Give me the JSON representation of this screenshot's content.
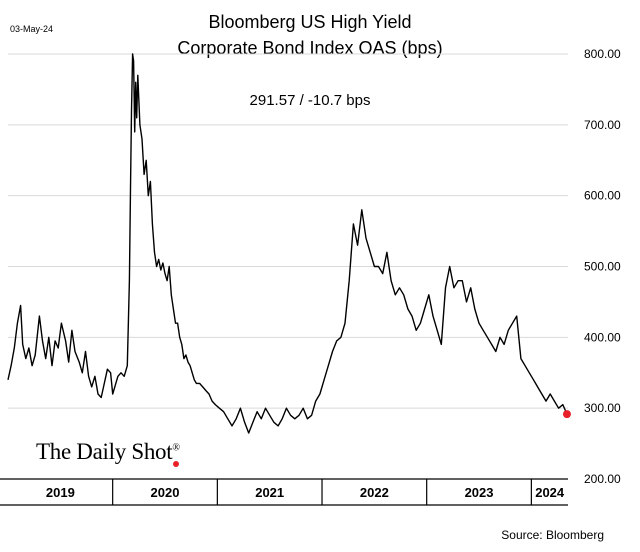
{
  "date_stamp": "03-May-24",
  "brand": "The Daily Shot",
  "brand_mark": "®",
  "source": "Source: Bloomberg",
  "chart_data": {
    "type": "line",
    "title": [
      "Bloomberg US High Yield",
      "Corporate Bond Index OAS (bps)"
    ],
    "annotation": "291.57  /  -10.7 bps",
    "ylim": [
      200,
      800
    ],
    "yticks": [
      "800.00",
      "700.00",
      "600.00",
      "500.00",
      "400.00",
      "300.00",
      "200.00"
    ],
    "ytick_values": [
      800,
      700,
      600,
      500,
      400,
      300,
      200
    ],
    "grid": true,
    "x_categories": [
      "2019",
      "2020",
      "2021",
      "2022",
      "2023",
      "2024"
    ],
    "x_range": [
      2019.0,
      2024.35
    ],
    "last_point": {
      "x": 2024.34,
      "y": 291.57,
      "color": "#e8202a"
    },
    "line_color": "#000000",
    "series": [
      {
        "x": [
          2019.0,
          2019.03,
          2019.06,
          2019.09,
          2019.12,
          2019.14,
          2019.17,
          2019.2,
          2019.23,
          2019.26,
          2019.3,
          2019.33,
          2019.36,
          2019.39,
          2019.42,
          2019.45,
          2019.48,
          2019.51,
          2019.55,
          2019.58,
          2019.61,
          2019.64,
          2019.68,
          2019.71,
          2019.74,
          2019.77,
          2019.8,
          2019.83,
          2019.86,
          2019.89,
          2019.92,
          2019.95,
          2019.98,
          2020.0,
          2020.02,
          2020.05,
          2020.08,
          2020.11,
          2020.14,
          2020.16,
          2020.17,
          2020.18,
          2020.19,
          2020.2,
          2020.21,
          2020.22,
          2020.23,
          2020.24,
          2020.26,
          2020.28,
          2020.3,
          2020.32,
          2020.34,
          2020.36,
          2020.38,
          2020.4,
          2020.42,
          2020.44,
          2020.46,
          2020.48,
          2020.5,
          2020.52,
          2020.54,
          2020.56,
          2020.58,
          2020.6,
          2020.62,
          2020.64,
          2020.66,
          2020.68,
          2020.7,
          2020.72,
          2020.74,
          2020.76,
          2020.78,
          2020.8,
          2020.83,
          2020.86,
          2020.89,
          2020.92,
          2020.95,
          2020.98,
          2021.02,
          2021.06,
          2021.1,
          2021.14,
          2021.18,
          2021.22,
          2021.26,
          2021.3,
          2021.34,
          2021.38,
          2021.42,
          2021.46,
          2021.5,
          2021.54,
          2021.58,
          2021.62,
          2021.66,
          2021.7,
          2021.74,
          2021.78,
          2021.82,
          2021.86,
          2021.9,
          2021.94,
          2021.98,
          2022.02,
          2022.06,
          2022.1,
          2022.14,
          2022.18,
          2022.22,
          2022.26,
          2022.3,
          2022.34,
          2022.38,
          2022.42,
          2022.46,
          2022.5,
          2022.54,
          2022.58,
          2022.62,
          2022.66,
          2022.7,
          2022.74,
          2022.78,
          2022.82,
          2022.86,
          2022.9,
          2022.94,
          2022.98,
          2023.02,
          2023.06,
          2023.1,
          2023.14,
          2023.18,
          2023.22,
          2023.26,
          2023.3,
          2023.34,
          2023.38,
          2023.42,
          2023.46,
          2023.5,
          2023.54,
          2023.58,
          2023.62,
          2023.66,
          2023.7,
          2023.74,
          2023.78,
          2023.82,
          2023.86,
          2023.9,
          2023.94,
          2023.98,
          2024.02,
          2024.06,
          2024.1,
          2024.14,
          2024.18,
          2024.22,
          2024.26,
          2024.3,
          2024.34
        ],
        "y": [
          340,
          360,
          385,
          420,
          445,
          390,
          370,
          385,
          360,
          375,
          430,
          395,
          370,
          400,
          360,
          395,
          385,
          420,
          395,
          365,
          410,
          380,
          365,
          350,
          380,
          345,
          330,
          345,
          320,
          315,
          335,
          355,
          350,
          320,
          330,
          345,
          350,
          345,
          360,
          480,
          610,
          720,
          800,
          790,
          690,
          760,
          710,
          770,
          700,
          680,
          630,
          650,
          600,
          620,
          560,
          520,
          500,
          510,
          495,
          505,
          490,
          480,
          500,
          460,
          440,
          420,
          420,
          400,
          390,
          370,
          375,
          365,
          360,
          350,
          340,
          335,
          335,
          330,
          325,
          320,
          310,
          305,
          300,
          295,
          285,
          275,
          285,
          300,
          280,
          265,
          280,
          295,
          285,
          300,
          290,
          280,
          275,
          285,
          300,
          290,
          285,
          290,
          300,
          285,
          290,
          310,
          320,
          340,
          360,
          380,
          395,
          400,
          420,
          480,
          560,
          530,
          580,
          540,
          520,
          500,
          500,
          490,
          520,
          480,
          460,
          470,
          460,
          440,
          430,
          410,
          420,
          440,
          460,
          430,
          410,
          390,
          470,
          500,
          470,
          480,
          480,
          450,
          470,
          440,
          420,
          410,
          400,
          390,
          380,
          400,
          390,
          410,
          420,
          430,
          370,
          360,
          350,
          340,
          330,
          320,
          310,
          320,
          310,
          300,
          305,
          291.57
        ]
      }
    ]
  }
}
